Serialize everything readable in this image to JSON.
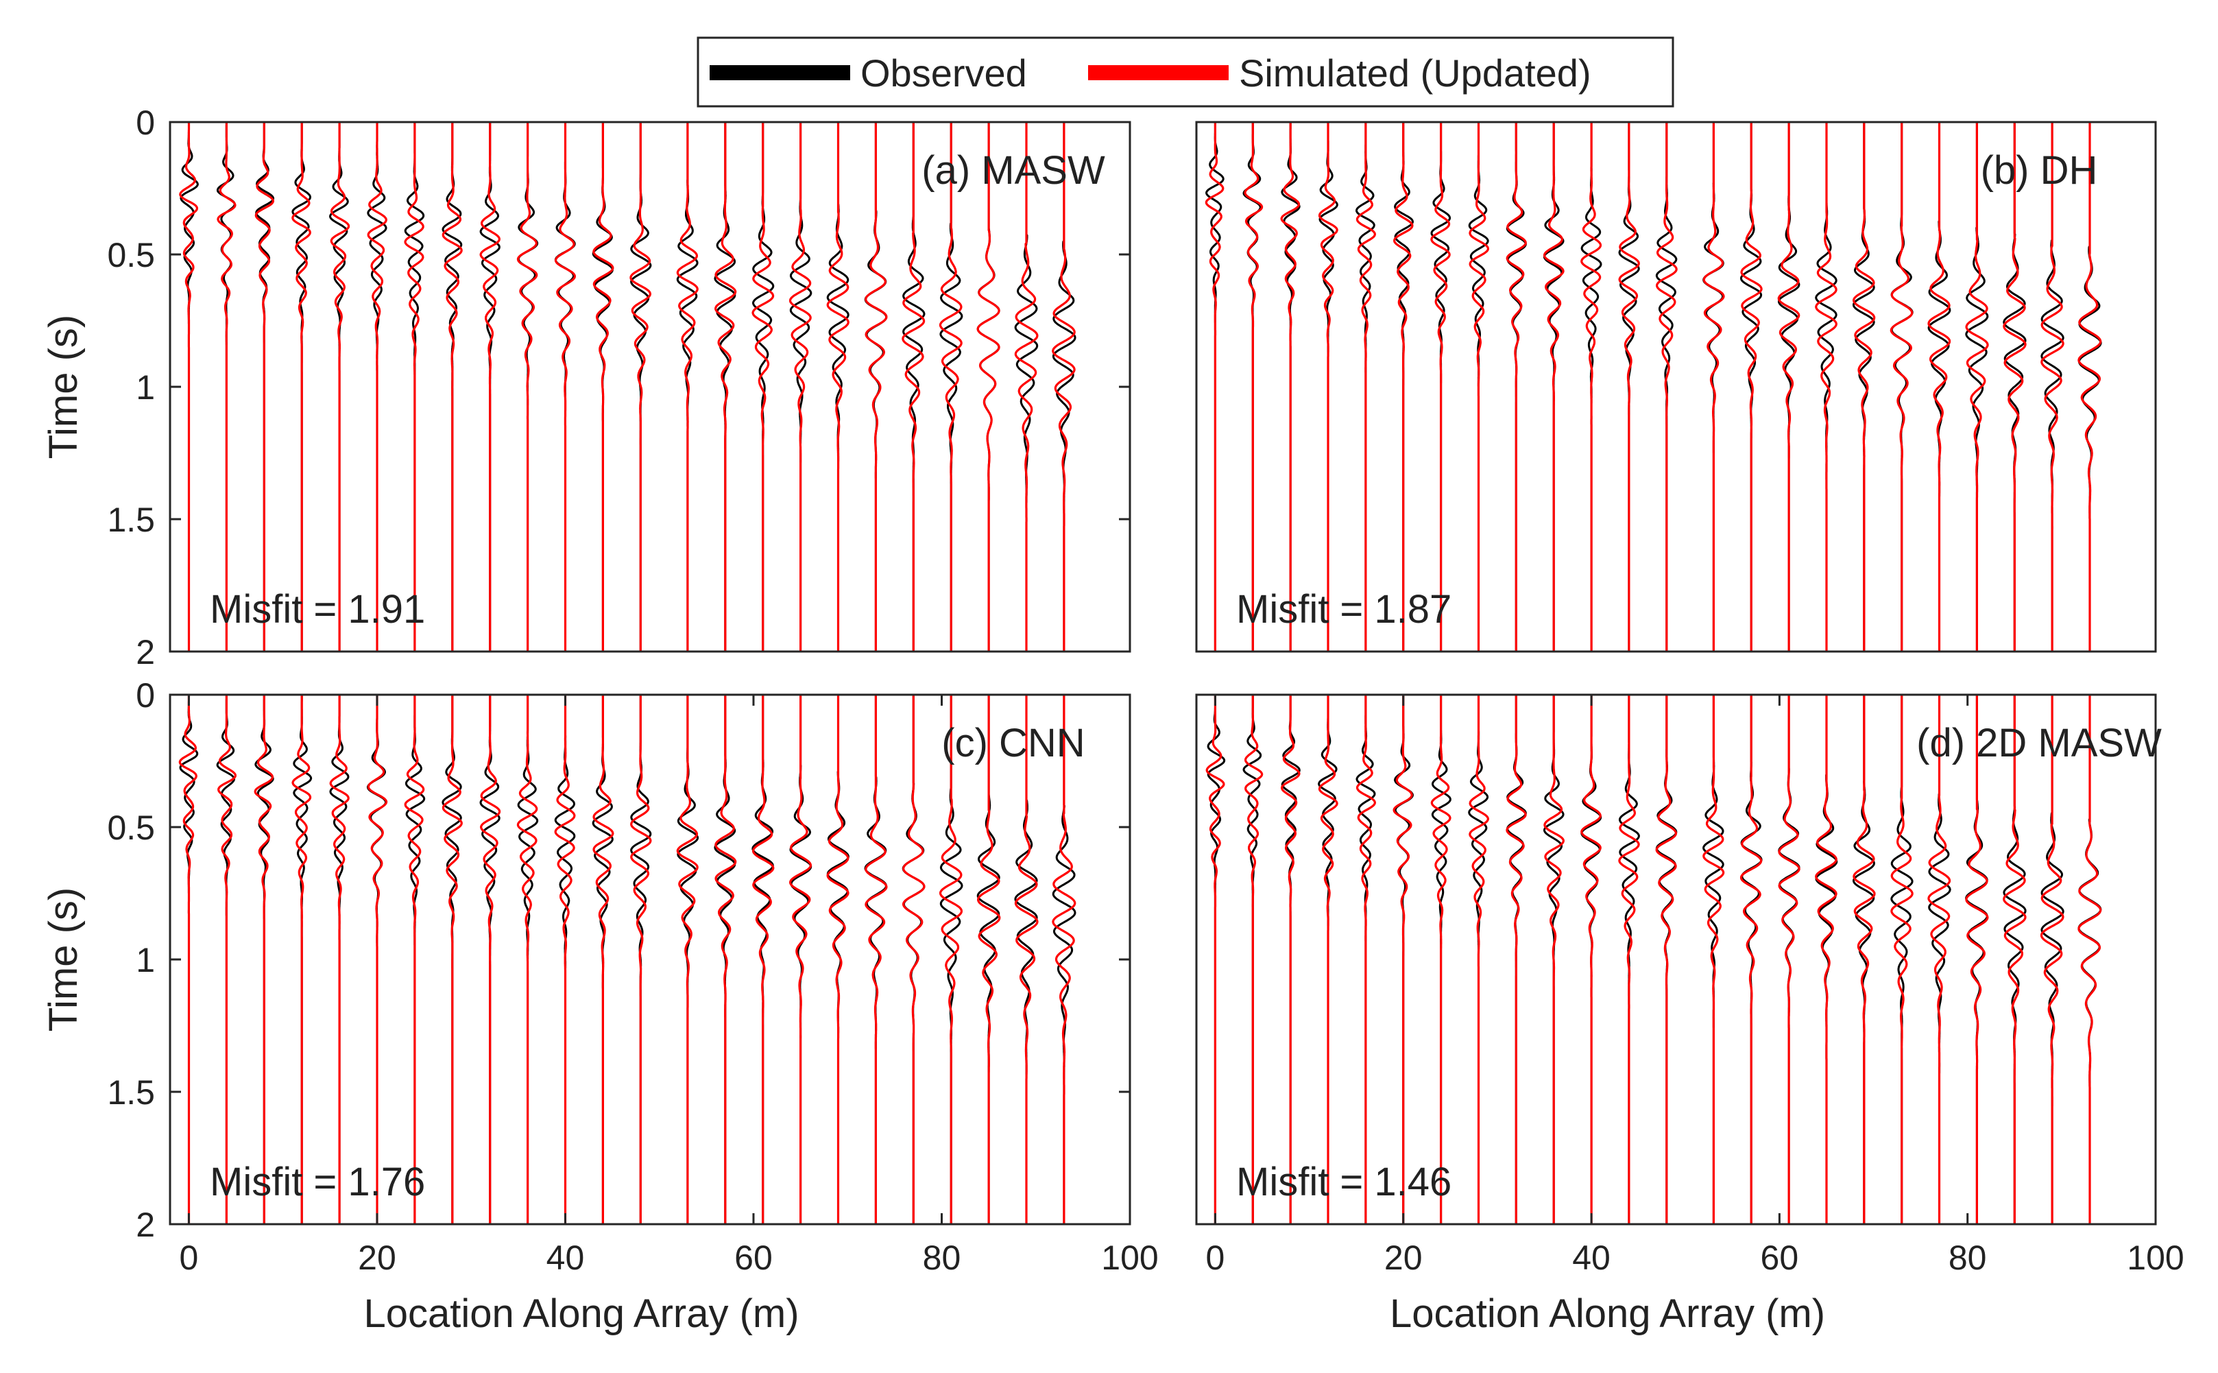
{
  "legend": {
    "entries": [
      {
        "label": "Observed",
        "color": "#000000"
      },
      {
        "label": "Simulated (Updated)",
        "color": "#ff0000"
      }
    ]
  },
  "colors": {
    "observed": "#000000",
    "simulated": "#ff0000",
    "axes": "#262626"
  },
  "chart_data": [
    {
      "type": "line",
      "subtype": "seismic-waterfall",
      "title": "(a) MASW",
      "misfit_text": "Misfit = 1.91",
      "misfit": 1.91,
      "xlabel": "",
      "ylabel": "Time (s)",
      "xlim": [
        -2,
        100
      ],
      "ylim": [
        2,
        0
      ],
      "y_reversed": true,
      "xticks": [],
      "yticks": [
        0,
        0.5,
        1,
        1.5,
        2
      ],
      "ytick_labels": [
        "0",
        "0.5",
        "1",
        "1.5",
        "2"
      ],
      "trace_offsets_m": [
        0,
        4,
        8,
        12,
        16,
        20,
        24,
        28,
        32,
        36,
        40,
        44,
        48,
        53,
        57,
        61,
        65,
        69,
        73,
        77,
        81,
        85,
        89,
        93
      ],
      "series": [
        {
          "name": "Observed"
        },
        {
          "name": "Simulated (Updated)"
        }
      ],
      "first_arrival_s": [
        0.25,
        0.78
      ]
    },
    {
      "type": "line",
      "subtype": "seismic-waterfall",
      "title": "(b) DH",
      "misfit_text": "Misfit = 1.87",
      "misfit": 1.87,
      "xlabel": "",
      "ylabel": "",
      "xlim": [
        -2,
        100
      ],
      "ylim": [
        2,
        0
      ],
      "y_reversed": true,
      "xticks": [],
      "yticks": [],
      "ytick_labels": [],
      "trace_offsets_m": [
        0,
        4,
        8,
        12,
        16,
        20,
        24,
        28,
        32,
        36,
        40,
        44,
        48,
        53,
        57,
        61,
        65,
        69,
        73,
        77,
        81,
        85,
        89,
        93
      ],
      "series": [
        {
          "name": "Observed"
        },
        {
          "name": "Simulated (Updated)"
        }
      ],
      "first_arrival_s": [
        0.25,
        0.8
      ]
    },
    {
      "type": "line",
      "subtype": "seismic-waterfall",
      "title": "(c) CNN",
      "misfit_text": "Misfit = 1.76",
      "misfit": 1.76,
      "xlabel": "Location Along Array (m)",
      "ylabel": "Time (s)",
      "xlim": [
        -2,
        100
      ],
      "ylim": [
        2,
        0
      ],
      "y_reversed": true,
      "xticks": [
        0,
        20,
        40,
        60,
        80,
        100
      ],
      "xtick_labels": [
        "0",
        "20",
        "40",
        "60",
        "80",
        "100"
      ],
      "yticks": [
        0,
        0.5,
        1,
        1.5,
        2
      ],
      "ytick_labels": [
        "0",
        "0.5",
        "1",
        "1.5",
        "2"
      ],
      "trace_offsets_m": [
        0,
        4,
        8,
        12,
        16,
        20,
        24,
        28,
        32,
        36,
        40,
        44,
        48,
        53,
        57,
        61,
        65,
        69,
        73,
        77,
        81,
        85,
        89,
        93
      ],
      "series": [
        {
          "name": "Observed"
        },
        {
          "name": "Simulated (Updated)"
        }
      ],
      "first_arrival_s": [
        0.25,
        0.75
      ]
    },
    {
      "type": "line",
      "subtype": "seismic-waterfall",
      "title": "(d) 2D MASW",
      "misfit_text": "Misfit = 1.46",
      "misfit": 1.46,
      "xlabel": "Location Along Array (m)",
      "ylabel": "",
      "xlim": [
        -2,
        100
      ],
      "ylim": [
        2,
        0
      ],
      "y_reversed": true,
      "xticks": [
        0,
        20,
        40,
        60,
        80,
        100
      ],
      "xtick_labels": [
        "0",
        "20",
        "40",
        "60",
        "80",
        "100"
      ],
      "yticks": [],
      "ytick_labels": [],
      "trace_offsets_m": [
        0,
        4,
        8,
        12,
        16,
        20,
        24,
        28,
        32,
        36,
        40,
        44,
        48,
        53,
        57,
        61,
        65,
        69,
        73,
        77,
        81,
        85,
        89,
        93
      ],
      "series": [
        {
          "name": "Observed"
        },
        {
          "name": "Simulated (Updated)"
        }
      ],
      "first_arrival_s": [
        0.25,
        0.8
      ]
    }
  ]
}
